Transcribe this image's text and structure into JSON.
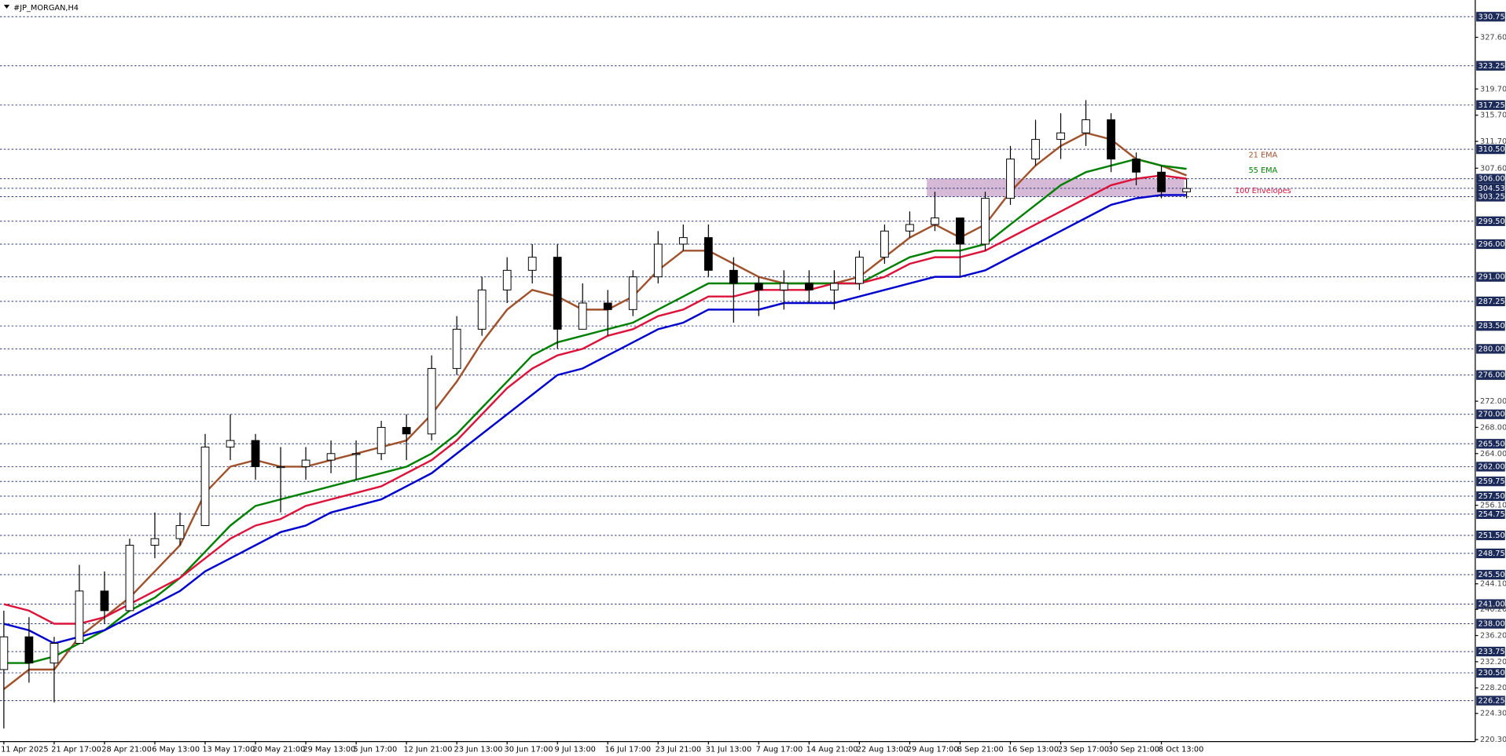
{
  "chart_data": {
    "type": "candlestick",
    "title": "#JP_MORGAN,H4",
    "categories": [
      "11 Apr 2025",
      null,
      "21 Apr 17:00",
      null,
      "28 Apr 21:00",
      null,
      "6 May 13:00",
      null,
      "13 May 17:00",
      null,
      "20 May 21:00",
      null,
      "29 May 13:00",
      null,
      "5 Jun 17:00",
      null,
      "12 Jun 21:00",
      null,
      "23 Jun 13:00",
      null,
      "30 Jun 17:00",
      null,
      "9 Jul 13:00",
      null,
      "16 Jul 17:00",
      null,
      "23 Jul 21:00",
      null,
      "31 Jul 13:00",
      null,
      "7 Aug 17:00",
      null,
      "14 Aug 21:00",
      null,
      "22 Aug 13:00",
      null,
      "29 Aug 17:00",
      null,
      "8 Sep 21:00",
      null,
      "16 Sep 13:00",
      null,
      "23 Sep 17:00",
      null,
      "30 Sep 21:00",
      null,
      "8 Oct 13:00",
      null
    ],
    "open": [
      231,
      236,
      232,
      235,
      243,
      240,
      250,
      251,
      253,
      265,
      266,
      262,
      262,
      263,
      264,
      264,
      268,
      267,
      277,
      283,
      289,
      292,
      294,
      283,
      287,
      286,
      291,
      296,
      297,
      292,
      290,
      289,
      290,
      289,
      290,
      294,
      298,
      299,
      300,
      296,
      303,
      309,
      312,
      313,
      315,
      309,
      307,
      304
    ],
    "high": [
      240,
      239,
      236,
      247,
      246,
      251,
      255,
      255,
      267,
      270,
      267,
      265,
      265,
      266,
      266,
      269,
      270,
      279,
      285,
      291,
      294,
      296,
      296,
      290,
      289,
      292,
      298,
      299,
      299,
      294,
      291,
      292,
      292,
      292,
      295,
      299,
      301,
      304,
      300,
      304,
      311,
      315,
      316,
      318,
      316,
      310,
      308,
      306
    ],
    "low": [
      222,
      229,
      226,
      235,
      238,
      240,
      248,
      250,
      253,
      263,
      260,
      255,
      260,
      261,
      260,
      263,
      263,
      266,
      276,
      282,
      287,
      290,
      280,
      283,
      282,
      285,
      290,
      295,
      291,
      284,
      285,
      286,
      287,
      286,
      289,
      293,
      297,
      298,
      291,
      295,
      302,
      308,
      309,
      311,
      307,
      305,
      303,
      303
    ],
    "close": [
      236,
      232,
      235,
      243,
      240,
      250,
      251,
      253,
      265,
      266,
      262,
      262,
      263,
      264,
      264,
      268,
      267,
      277,
      283,
      289,
      292,
      294,
      283,
      287,
      286,
      291,
      296,
      297,
      292,
      290,
      289,
      290,
      289,
      290,
      294,
      298,
      299,
      300,
      296,
      303,
      309,
      312,
      313,
      315,
      309,
      307,
      304,
      304.5
    ],
    "series": [
      {
        "name": "21 EMA",
        "color": "#a0522d",
        "values": [
          228,
          231,
          231,
          236,
          239,
          242,
          246,
          250,
          258,
          262,
          263,
          262,
          262,
          263,
          264,
          265,
          266,
          270,
          275,
          281,
          286,
          289,
          288,
          286,
          286,
          288,
          292,
          295,
          295,
          293,
          291,
          290,
          290,
          290,
          291,
          294,
          297,
          299,
          297,
          299,
          304,
          308,
          311,
          313,
          312,
          309,
          308,
          306.5
        ]
      },
      {
        "name": "55 EMA",
        "color": "#008000",
        "values": [
          232,
          232,
          233,
          235,
          237,
          240,
          242,
          245,
          249,
          253,
          256,
          257,
          258,
          259,
          260,
          261,
          262,
          264,
          267,
          271,
          275,
          279,
          281,
          282,
          283,
          284,
          286,
          288,
          290,
          290,
          290,
          290,
          290,
          290,
          290,
          292,
          294,
          295,
          295,
          296,
          299,
          302,
          305,
          307,
          308,
          309,
          308,
          307.5
        ]
      },
      {
        "name": "100 Envelopes",
        "color": "#dc143c",
        "values": [
          241,
          240,
          238,
          238,
          239,
          241,
          243,
          245,
          248,
          251,
          253,
          254,
          256,
          257,
          258,
          259,
          261,
          263,
          266,
          270,
          274,
          277,
          279,
          280,
          282,
          283,
          285,
          286,
          288,
          288,
          289,
          289,
          289,
          290,
          290,
          291,
          293,
          294,
          294,
          295,
          297,
          299,
          301,
          303,
          305,
          306,
          306.5,
          306
        ]
      },
      {
        "color": "#0000cd",
        "values": [
          238,
          237,
          235,
          236,
          237,
          239,
          241,
          243,
          246,
          248,
          250,
          252,
          253,
          255,
          256,
          257,
          259,
          261,
          264,
          267,
          270,
          273,
          276,
          277,
          279,
          281,
          283,
          284,
          286,
          286,
          286,
          287,
          287,
          287,
          288,
          289,
          290,
          291,
          291,
          292,
          294,
          296,
          298,
          300,
          302,
          303,
          303.5,
          303.5
        ]
      }
    ],
    "zone": {
      "ylim": [
        303.25,
        306
      ],
      "color": "#c8a2c8"
    },
    "ylim": [
      220,
      333.3
    ],
    "yticks": [
      {
        "value": 327.6,
        "label": "327.60"
      },
      {
        "value": 319.7,
        "label": "319.70"
      },
      {
        "value": 315.7,
        "label": "315.70"
      },
      {
        "value": 311.7,
        "label": "311.70"
      },
      {
        "value": 307.6,
        "label": "307.60"
      },
      {
        "value": 272,
        "label": "272.00"
      },
      {
        "value": 268,
        "label": "268.00"
      },
      {
        "value": 264,
        "label": "264.00"
      },
      {
        "value": 256.1,
        "label": "256.10"
      },
      {
        "value": 244.1,
        "label": "244.10"
      },
      {
        "value": 240.2,
        "label": "240.20"
      },
      {
        "value": 236.2,
        "label": "236.20"
      },
      {
        "value": 232.2,
        "label": "232.20"
      },
      {
        "value": 228.2,
        "label": "228.20"
      },
      {
        "value": 224.3,
        "label": "224.30"
      },
      {
        "value": 220.3,
        "label": "220.30"
      }
    ],
    "levels": [
      {
        "value": 330.75,
        "label": "330.75"
      },
      {
        "value": 323.25,
        "label": "323.25"
      },
      {
        "value": 317.25,
        "label": "317.25"
      },
      {
        "value": 310.5,
        "label": "310.50"
      },
      {
        "value": 306,
        "label": "306.00"
      },
      {
        "value": 304.53,
        "label": "304.53"
      },
      {
        "value": 303.25,
        "label": "303.25"
      },
      {
        "value": 299.5,
        "label": "299.50"
      },
      {
        "value": 296,
        "label": "296.00"
      },
      {
        "value": 291,
        "label": "291.00"
      },
      {
        "value": 287.25,
        "label": "287.25"
      },
      {
        "value": 283.5,
        "label": "283.50"
      },
      {
        "value": 280,
        "label": "280.00"
      },
      {
        "value": 276,
        "label": "276.00"
      },
      {
        "value": 270,
        "label": "270.00"
      },
      {
        "value": 265.5,
        "label": "265.50"
      },
      {
        "value": 262,
        "label": "262.00"
      },
      {
        "value": 259.75,
        "label": "259.75"
      },
      {
        "value": 257.5,
        "label": "257.50"
      },
      {
        "value": 254.75,
        "label": "254.75"
      },
      {
        "value": 251.5,
        "label": "251.50"
      },
      {
        "value": 248.75,
        "label": "248.75"
      },
      {
        "value": 245.5,
        "label": "245.50"
      },
      {
        "value": 241,
        "label": "241.00"
      },
      {
        "value": 238,
        "label": "238.00"
      },
      {
        "value": 233.75,
        "label": "233.75"
      },
      {
        "value": 230.5,
        "label": "230.50"
      },
      {
        "value": 226.25,
        "label": "226.25"
      }
    ]
  }
}
